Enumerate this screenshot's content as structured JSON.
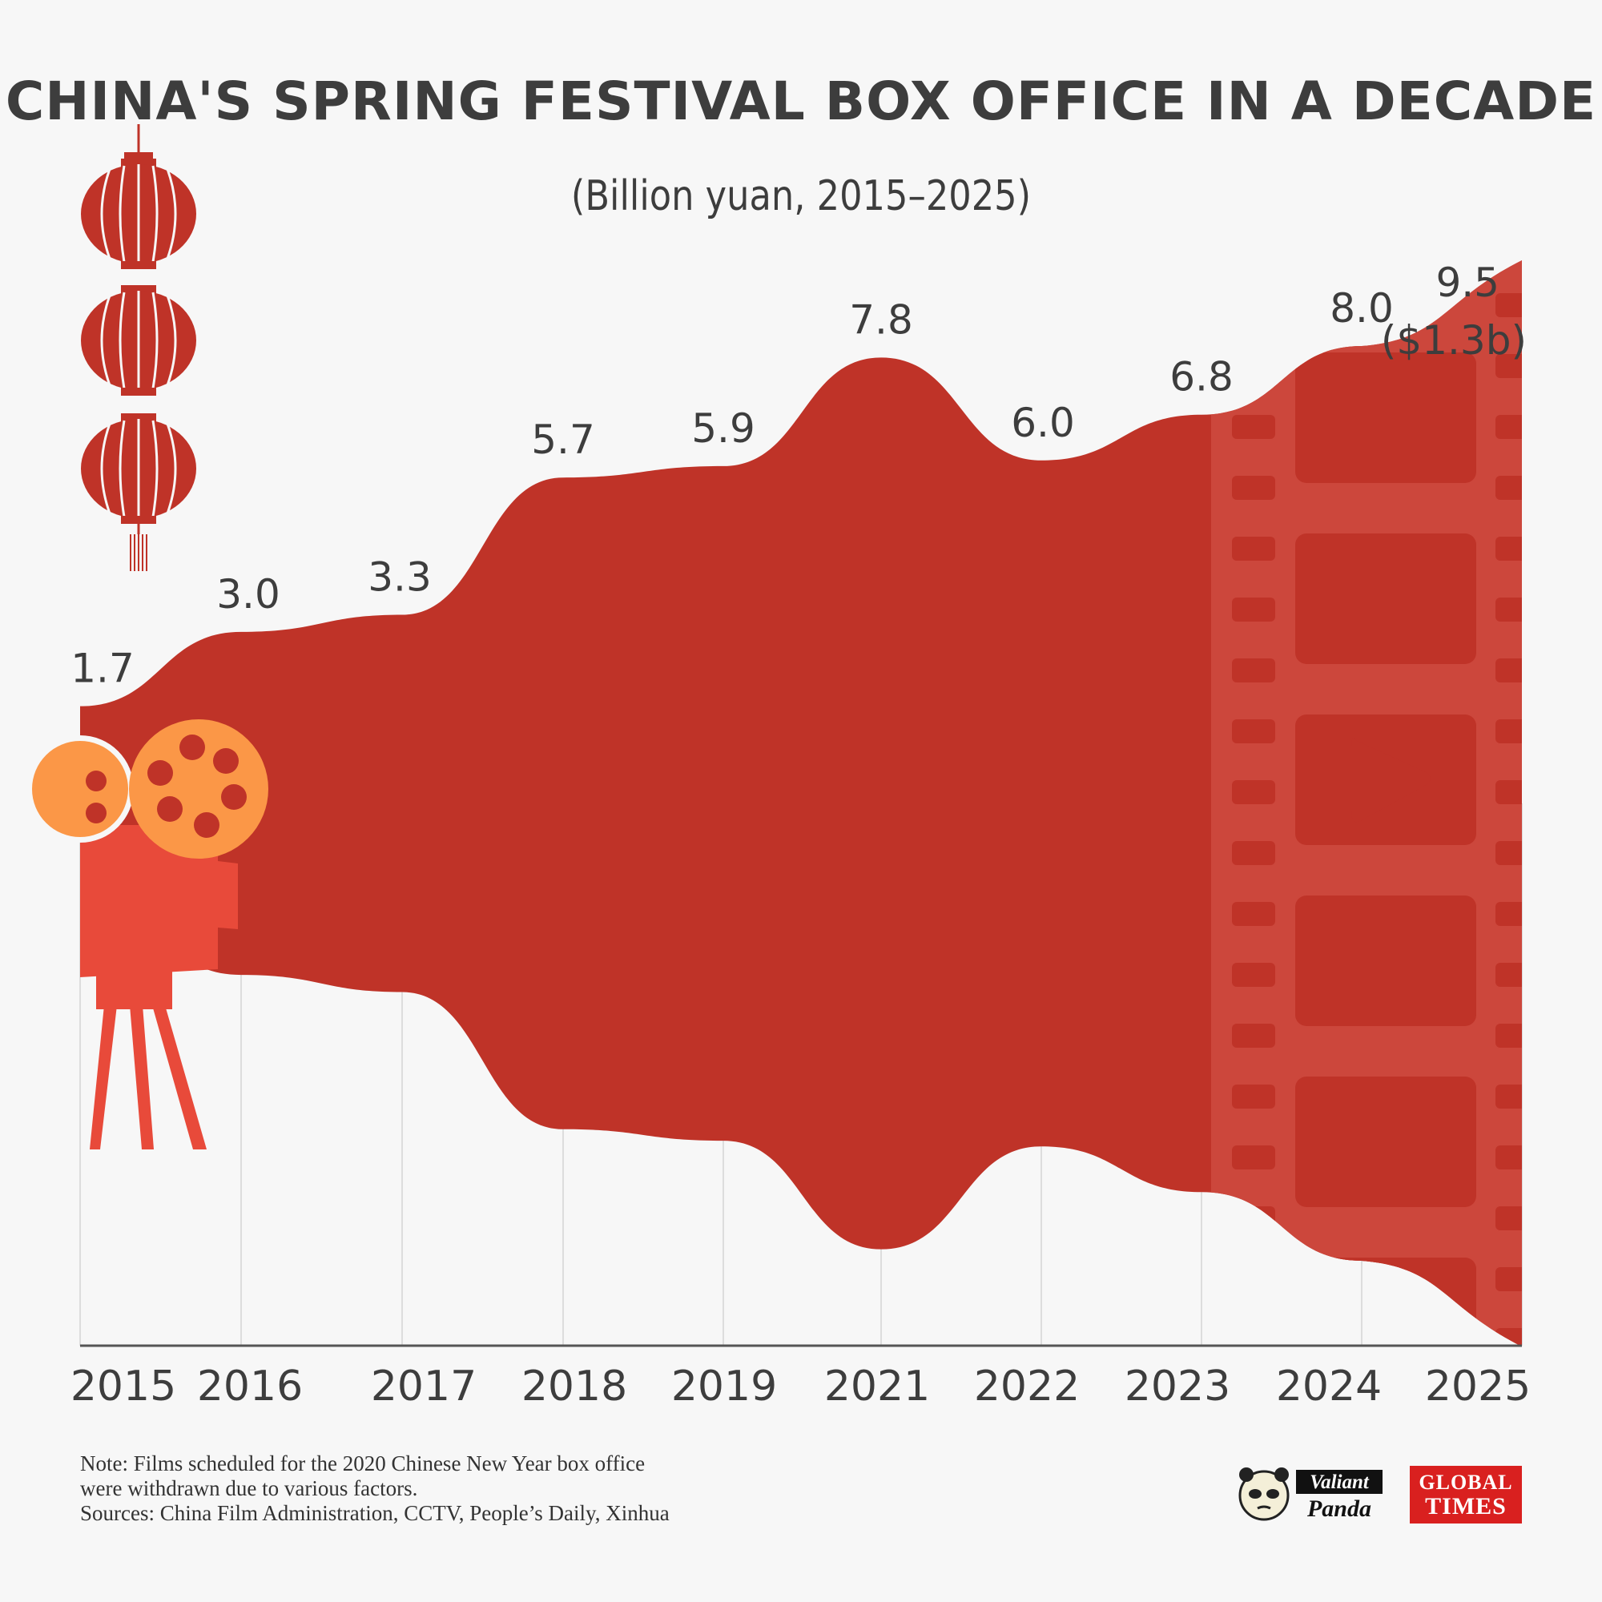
{
  "header": {
    "title": "CHINA'S SPRING FESTIVAL BOX OFFICE IN A DECADE",
    "subtitle": "(Billion yuan, 2015–2025)"
  },
  "chart_data": {
    "type": "area",
    "title": "CHINA'S SPRING FESTIVAL BOX OFFICE IN A DECADE",
    "subtitle": "(Billion yuan, 2015–2025)",
    "categories": [
      "2015",
      "2016",
      "2017",
      "2018",
      "2019",
      "2021",
      "2022",
      "2023",
      "2024",
      "2025"
    ],
    "values": [
      1.7,
      3.0,
      3.3,
      5.7,
      5.9,
      7.8,
      6.0,
      6.8,
      8.0,
      9.5
    ],
    "value_labels": [
      "1.7",
      "3.0",
      "3.3",
      "5.7",
      "5.9",
      "7.8",
      "6.0",
      "6.8",
      "8.0",
      "9.5"
    ],
    "last_value_usd_label": "($1.3b)",
    "ylim": [
      0,
      9.5
    ],
    "fill_color": "#bf3328",
    "film_strip_color": "#cc473c",
    "grid": "vertical"
  },
  "footer": {
    "note_lines": [
      "Note: Films scheduled for the 2020 Chinese New Year box office",
      "were withdrawn due to various factors.",
      "Sources: China Film Administration, CCTV, People’s Daily, Xinhua"
    ]
  },
  "logos": {
    "panda_top": "Valiant",
    "panda_bottom": "Panda",
    "gt_top": "GLOBAL",
    "gt_bottom": "TIMES"
  },
  "decorations": {
    "lanterns": "red-lantern-icon",
    "projector": "film-projector-icon",
    "film_strip": "film-strip-icon",
    "play": "play-icon"
  }
}
